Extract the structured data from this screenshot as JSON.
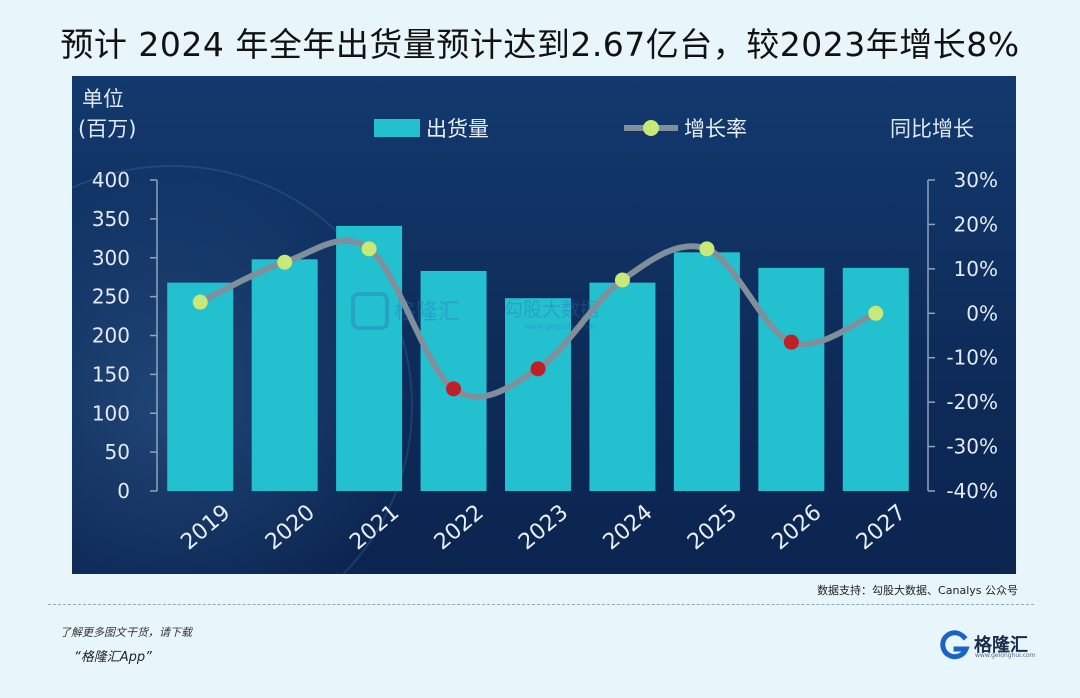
{
  "headline": "预计 2024 年全年出货量预计达到2.67亿台，较2023年增长8%",
  "source": "数据支持：勾股大数据、Canalys 公众号",
  "promo": {
    "line1": "了解更多图文干货，请下载",
    "line2": "“格隆汇App”"
  },
  "logo": {
    "name": "格隆汇",
    "url": "www.gelonghui.com",
    "icon": "g-logo-icon"
  },
  "watermark": {
    "left": "格隆汇",
    "right": "勾股大数据",
    "url": "www.goguda.com"
  },
  "colors": {
    "bar": "#23c0d0",
    "line": "#7f8f9c",
    "dot_positive": "#c8e878",
    "dot_negative": "#c01f28",
    "background": "#0f2e5e"
  },
  "chart_data": {
    "type": "bar+line",
    "categories": [
      "2019",
      "2020",
      "2021",
      "2022",
      "2023",
      "2024",
      "2025",
      "2026",
      "2027"
    ],
    "series": [
      {
        "name": "出货量",
        "type": "bar",
        "axis": "left",
        "values": [
          268,
          298,
          341,
          283,
          248,
          268,
          307,
          287,
          287
        ]
      },
      {
        "name": "增长率",
        "type": "line",
        "axis": "right",
        "values": [
          2.5,
          11.5,
          14.5,
          -17,
          -12.5,
          7.5,
          14.5,
          -6.5,
          0
        ]
      }
    ],
    "ylabel_left": [
      "单位",
      "(百万)"
    ],
    "ylabel_right": "同比增长",
    "ylim_left": [
      0,
      400
    ],
    "yticks_left": [
      "0",
      "50",
      "100",
      "150",
      "200",
      "250",
      "300",
      "350",
      "400"
    ],
    "ylim_right": [
      -40,
      30
    ],
    "yticks_right": [
      "-40%",
      "-30%",
      "-20%",
      "-10%",
      "0%",
      "10%",
      "20%",
      "30%"
    ],
    "legend": [
      "出货量",
      "增长率"
    ],
    "legend_position": "top-center",
    "grid": false
  }
}
